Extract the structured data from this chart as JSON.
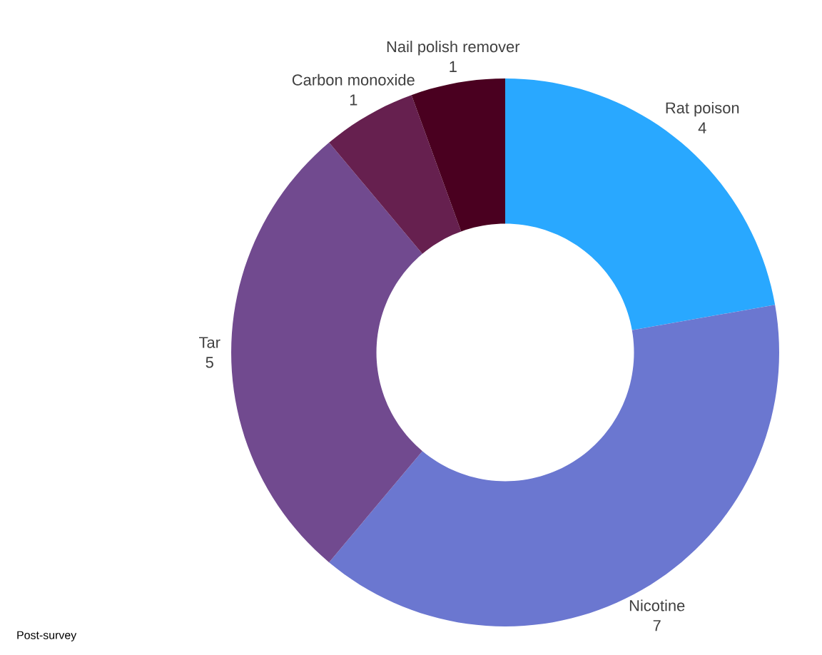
{
  "chart_data": {
    "type": "donut",
    "categories": [
      "Rat poison",
      "Nicotine",
      "Tar",
      "Carbon monoxide",
      "Nail polish remover"
    ],
    "values": [
      4,
      7,
      5,
      1,
      1
    ],
    "colors": [
      "#29a8ff",
      "#6b77d0",
      "#714a8f",
      "#66204f",
      "#4a0020"
    ],
    "data_labels": true,
    "annotations": [
      "Post-survey"
    ]
  }
}
